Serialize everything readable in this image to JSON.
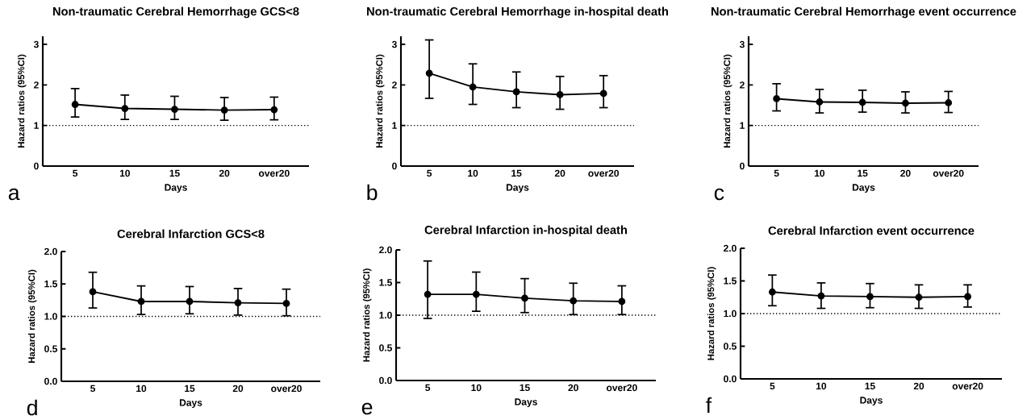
{
  "chart_data": [
    {
      "type": "line",
      "title": "Non-traumatic Cerebral Hemorrhage GCS<8",
      "xlabel": "Days",
      "ylabel": "Hazard ratios (95%CI)",
      "categories": [
        "5",
        "10",
        "15",
        "20",
        "over20"
      ],
      "values": [
        1.52,
        1.42,
        1.4,
        1.38,
        1.39
      ],
      "errors": [
        [
          1.21,
          1.91
        ],
        [
          1.15,
          1.75
        ],
        [
          1.15,
          1.72
        ],
        [
          1.13,
          1.69
        ],
        [
          1.14,
          1.7
        ]
      ],
      "color": "#000000",
      "marker": "circle",
      "ylim": [
        0,
        3.2
      ],
      "yticks": [
        0,
        1,
        2,
        3
      ],
      "ref_lines": [
        {
          "axis": "y",
          "value": 1,
          "line_style": "dotted"
        }
      ],
      "annotations": [
        "a"
      ]
    },
    {
      "type": "line",
      "title": "Non-traumatic Cerebral Hemorrhage in-hospital death",
      "xlabel": "Days",
      "ylabel": "Hazard ratios (95%CI)",
      "categories": [
        "5",
        "10",
        "15",
        "20",
        "over20"
      ],
      "values": [
        2.29,
        1.95,
        1.83,
        1.76,
        1.79
      ],
      "errors": [
        [
          1.67,
          3.11
        ],
        [
          1.52,
          2.52
        ],
        [
          1.44,
          2.32
        ],
        [
          1.4,
          2.21
        ],
        [
          1.44,
          2.23
        ]
      ],
      "color": "#000000",
      "marker": "circle",
      "ylim": [
        0,
        3.2
      ],
      "yticks": [
        0,
        1,
        2,
        3
      ],
      "ref_lines": [
        {
          "axis": "y",
          "value": 1,
          "line_style": "dotted"
        }
      ],
      "annotations": [
        "b"
      ]
    },
    {
      "type": "line",
      "title": "Non-traumatic Cerebral Hemorrhage event occurrence",
      "xlabel": "Days",
      "ylabel": "Hazard ratios (95%CI)",
      "categories": [
        "5",
        "10",
        "15",
        "20",
        "over20"
      ],
      "values": [
        1.66,
        1.58,
        1.57,
        1.55,
        1.56
      ],
      "errors": [
        [
          1.36,
          2.03
        ],
        [
          1.31,
          1.89
        ],
        [
          1.33,
          1.87
        ],
        [
          1.31,
          1.83
        ],
        [
          1.32,
          1.84
        ]
      ],
      "color": "#000000",
      "marker": "circle",
      "ylim": [
        0,
        3.2
      ],
      "yticks": [
        0,
        1,
        2,
        3
      ],
      "ref_lines": [
        {
          "axis": "y",
          "value": 1,
          "line_style": "dotted"
        }
      ],
      "annotations": [
        "c"
      ]
    },
    {
      "type": "line",
      "title": "Cerebral Infarction GCS<8",
      "xlabel": "Days",
      "ylabel": "Hazard ratios (95%CI)",
      "categories": [
        "5",
        "10",
        "15",
        "20",
        "over20"
      ],
      "values": [
        1.38,
        1.23,
        1.23,
        1.21,
        1.2
      ],
      "errors": [
        [
          1.13,
          1.68
        ],
        [
          1.03,
          1.47
        ],
        [
          1.04,
          1.46
        ],
        [
          1.02,
          1.43
        ],
        [
          1.01,
          1.42
        ]
      ],
      "color": "#000000",
      "marker": "circle",
      "ylim": [
        0,
        2
      ],
      "yticks": [
        {
          "value": 0,
          "label": "0.0"
        },
        0.5,
        {
          "value": 1,
          "label": "1.0"
        },
        1.5,
        {
          "value": 2,
          "label": "2.0"
        }
      ],
      "ref_lines": [
        {
          "axis": "y",
          "value": 1,
          "line_style": "dotted"
        }
      ],
      "annotations": [
        "d"
      ]
    },
    {
      "type": "line",
      "title": "Cerebral Infarction in-hospital death",
      "xlabel": "Days",
      "ylabel": "Hazard ratios (95%CI)",
      "categories": [
        "5",
        "10",
        "15",
        "20",
        "over20"
      ],
      "values": [
        1.32,
        1.32,
        1.26,
        1.22,
        1.21
      ],
      "errors": [
        [
          0.95,
          1.83
        ],
        [
          1.06,
          1.66
        ],
        [
          1.04,
          1.56
        ],
        [
          1.01,
          1.49
        ],
        [
          1.01,
          1.45
        ]
      ],
      "color": "#000000",
      "marker": "circle",
      "ylim": [
        0,
        2
      ],
      "yticks": [
        {
          "value": 0,
          "label": "0.0"
        },
        0.5,
        {
          "value": 1,
          "label": "1.0"
        },
        1.5,
        {
          "value": 2,
          "label": "2.0"
        }
      ],
      "ref_lines": [
        {
          "axis": "y",
          "value": 1,
          "line_style": "dotted"
        }
      ],
      "annotations": [
        "e"
      ]
    },
    {
      "type": "line",
      "title": "Cerebral Infarction event occurrence",
      "xlabel": "Days",
      "ylabel": "Hazard ratios (95%CI)",
      "categories": [
        "5",
        "10",
        "15",
        "20",
        "over20"
      ],
      "values": [
        1.33,
        1.27,
        1.26,
        1.25,
        1.26
      ],
      "errors": [
        [
          1.12,
          1.59
        ],
        [
          1.08,
          1.47
        ],
        [
          1.09,
          1.46
        ],
        [
          1.08,
          1.44
        ],
        [
          1.1,
          1.44
        ]
      ],
      "color": "#000000",
      "marker": "circle",
      "ylim": [
        0,
        2
      ],
      "yticks": [
        {
          "value": 0,
          "label": "0.0"
        },
        0.5,
        {
          "value": 1,
          "label": "1.0"
        },
        1.5,
        {
          "value": 2,
          "label": "2.0"
        }
      ],
      "ref_lines": [
        {
          "axis": "y",
          "value": 1,
          "line_style": "dotted"
        }
      ],
      "annotations": [
        "f"
      ]
    }
  ]
}
